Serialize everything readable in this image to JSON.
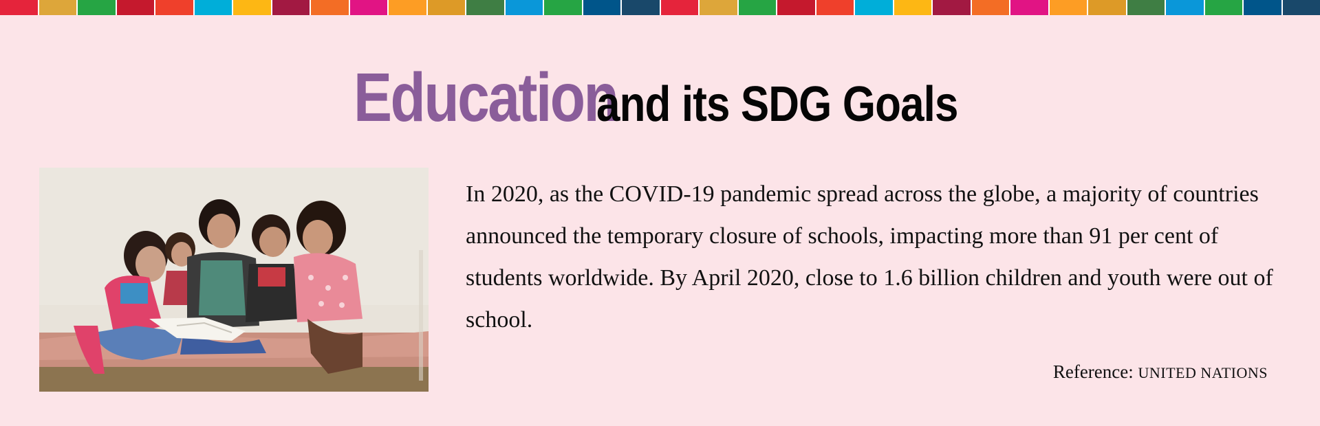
{
  "stripe": {
    "colors": [
      "#e5243b",
      "#dda63a",
      "#26a544",
      "#c5192d",
      "#ef402b",
      "#00aed9",
      "#fdb714",
      "#a21942",
      "#f36d25",
      "#e11484",
      "#fd9d24",
      "#dd9a27",
      "#3f7e44",
      "#0a97d9",
      "#26a544",
      "#00558a",
      "#19486a",
      "#e5243b",
      "#dda63a",
      "#26a544",
      "#c5192d",
      "#ef402b",
      "#00aed9",
      "#fdb714",
      "#a21942",
      "#f36d25",
      "#e11484",
      "#fd9d24",
      "#dd9a27",
      "#3f7e44",
      "#0a97d9",
      "#26a544",
      "#00558a",
      "#19486a"
    ]
  },
  "header": {
    "title_highlight": "Education",
    "title_rest": "and its SDG Goals",
    "highlight_color": "#8a5d9a"
  },
  "photo": {
    "icon": "children-reading-photo"
  },
  "content": {
    "paragraph": "In 2020, as the COVID-19 pandemic spread across the globe, a majority of countries announced the temporary closure of schools, impacting more than 91 per cent of students worldwide. By April 2020, close to 1.6 billion children and youth were out of school."
  },
  "reference": {
    "label": "Reference:",
    "source": "UNITED NATIONS"
  }
}
